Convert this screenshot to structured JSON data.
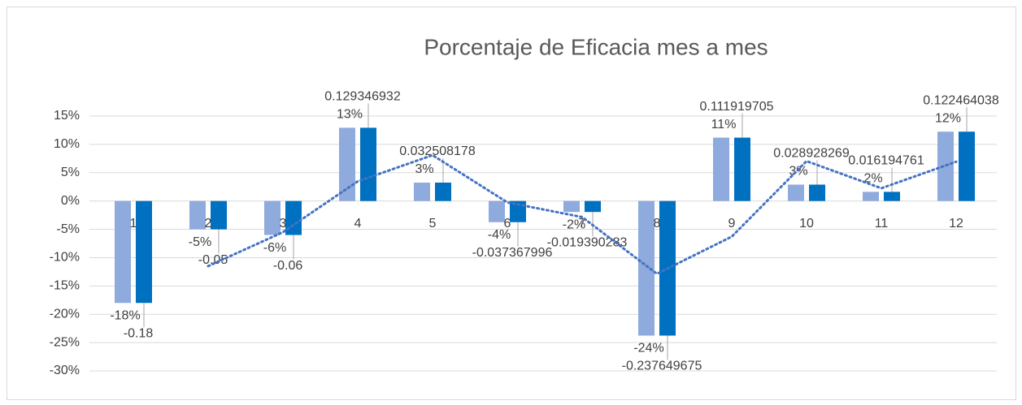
{
  "chart_data": {
    "type": "bar",
    "title": "Porcentaje de  Eficacia mes a mes",
    "categories": [
      "1",
      "2",
      "3",
      "4",
      "5",
      "6",
      "7",
      "8",
      "9",
      "10",
      "11",
      "12"
    ],
    "series": [
      {
        "color": "#8faadc",
        "values": [
          -0.18,
          -0.05,
          -0.06,
          0.129346932,
          0.032508178,
          -0.037367996,
          -0.019390283,
          -0.237649675,
          0.111919705,
          0.028928269,
          0.016194761,
          0.122464038
        ],
        "value_labels": [
          "-18%",
          "-5%",
          "-6%",
          "13%",
          "3%",
          "-4%",
          "-2%",
          "-24%",
          "11%",
          "3%",
          "2%",
          "12%"
        ]
      },
      {
        "color": "#0070c0",
        "values": [
          -0.18,
          -0.05,
          -0.06,
          0.129346932,
          0.032508178,
          -0.037367996,
          -0.019390283,
          -0.237649675,
          0.111919705,
          0.028928269,
          0.016194761,
          0.122464038
        ]
      }
    ],
    "trendline": {
      "kind": "moving_average",
      "period": 2,
      "color": "#4472c4"
    },
    "ylim": [
      -0.3,
      0.15
    ],
    "yticks": [
      {
        "value": 0.15,
        "label": "15%"
      },
      {
        "value": 0.1,
        "label": "10%"
      },
      {
        "value": 0.05,
        "label": "5%"
      },
      {
        "value": 0,
        "label": "0%"
      },
      {
        "value": -0.05,
        "label": "-5%"
      },
      {
        "value": -0.1,
        "label": "-10%"
      },
      {
        "value": -0.15,
        "label": "-15%"
      },
      {
        "value": -0.2,
        "label": "-20%"
      },
      {
        "value": -0.25,
        "label": "-25%"
      },
      {
        "value": -0.3,
        "label": "-30%"
      }
    ],
    "grid": true
  }
}
